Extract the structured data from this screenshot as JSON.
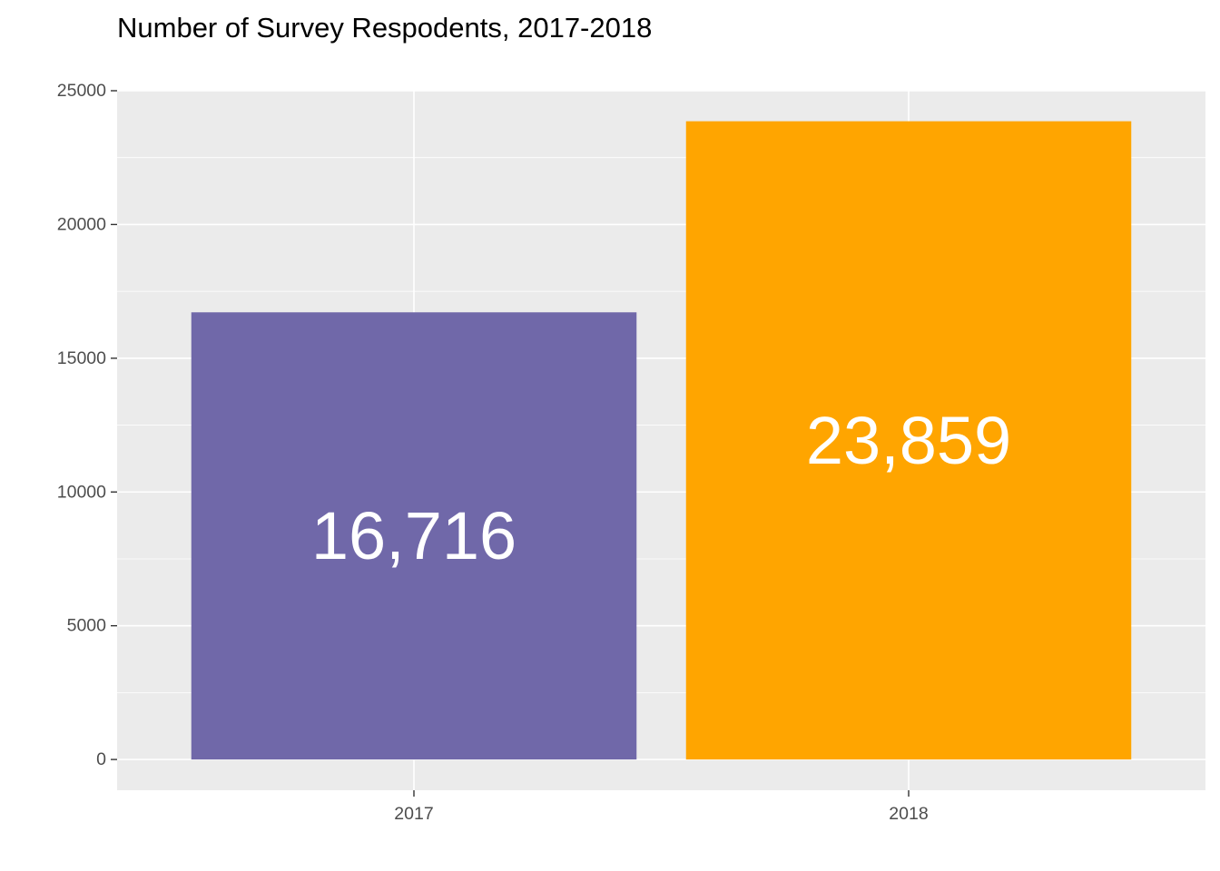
{
  "chart_data": {
    "type": "bar",
    "title": "Number of Survey Respodents, 2017-2018",
    "xlabel": "",
    "ylabel": "",
    "categories": [
      "2017",
      "2018"
    ],
    "values": [
      16716,
      23859
    ],
    "value_labels": [
      "16,716",
      "23,859"
    ],
    "bar_colors": [
      "#7068A9",
      "#FFA500"
    ],
    "ylim": [
      -1150,
      25000
    ],
    "y_ticks": [
      0,
      5000,
      10000,
      15000,
      20000,
      25000
    ],
    "y_tick_labels": [
      "0",
      "5000",
      "10000",
      "15000",
      "20000",
      "25000"
    ],
    "grid": true,
    "legend": "none",
    "panel_background": "#EBEBEB",
    "grid_color": "#FFFFFF"
  }
}
